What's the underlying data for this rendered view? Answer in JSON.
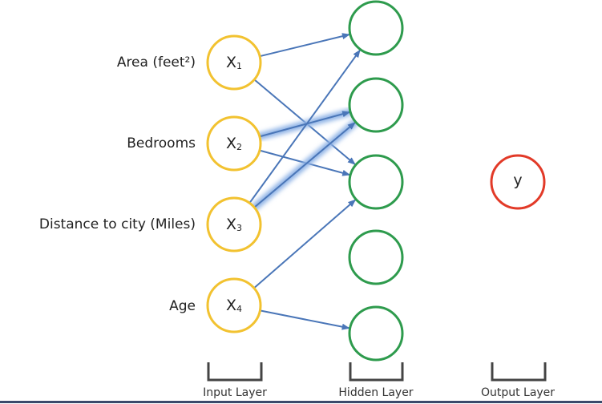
{
  "features": [
    {
      "label": "Area (feet²)",
      "node": "X",
      "sub": "1"
    },
    {
      "label": "Bedrooms",
      "node": "X",
      "sub": "2"
    },
    {
      "label": "Distance to city (Miles)",
      "node": "X",
      "sub": "3"
    },
    {
      "label": "Age",
      "node": "X",
      "sub": "4"
    }
  ],
  "hidden_count": 5,
  "output": {
    "label": "y"
  },
  "layers": {
    "input": "Input Layer",
    "hidden": "Hidden Layer",
    "output": "Output Layer"
  },
  "connections": [
    {
      "from": 1,
      "to": 1,
      "emphasis": false
    },
    {
      "from": 1,
      "to": 3,
      "emphasis": false
    },
    {
      "from": 2,
      "to": 2,
      "emphasis": true
    },
    {
      "from": 2,
      "to": 3,
      "emphasis": false
    },
    {
      "from": 3,
      "to": 1,
      "emphasis": false
    },
    {
      "from": 3,
      "to": 2,
      "emphasis": true
    },
    {
      "from": 4,
      "to": 3,
      "emphasis": false
    },
    {
      "from": 4,
      "to": 5,
      "emphasis": false
    }
  ],
  "colors": {
    "input_node": "#f2c230",
    "hidden_node": "#2e9b4d",
    "output_node": "#e23a28",
    "connection": "#4a76b8",
    "emphasis_glow": "#8fb3e6"
  }
}
